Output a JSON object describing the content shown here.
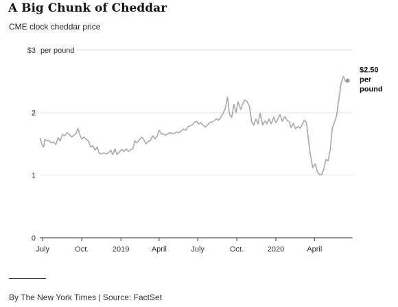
{
  "header": {
    "title": "A Big Chunk of Cheddar",
    "subtitle": "CME clock cheddar price"
  },
  "footer": {
    "credit": "By The New York Times | Source: FactSet"
  },
  "chart_data": {
    "type": "line",
    "title": "A Big Chunk of Cheddar",
    "subtitle": "CME clock cheddar price",
    "ylim": [
      0,
      3
    ],
    "xlim": [
      "2018-06-24",
      "2020-06-30"
    ],
    "y_ticks": [
      {
        "value": 3,
        "label": "$3"
      },
      {
        "value": 2,
        "label": "2"
      },
      {
        "value": 1,
        "label": "1"
      },
      {
        "value": 0,
        "label": "0"
      }
    ],
    "y_unit_label": "per pound",
    "x_ticks": [
      {
        "date": "2018-07-01",
        "label": "July"
      },
      {
        "date": "2018-10-01",
        "label": "Oct."
      },
      {
        "date": "2019-01-01",
        "label": "2019"
      },
      {
        "date": "2019-04-01",
        "label": "April"
      },
      {
        "date": "2019-07-01",
        "label": "July"
      },
      {
        "date": "2019-10-01",
        "label": "Oct."
      },
      {
        "date": "2020-01-01",
        "label": "2020"
      },
      {
        "date": "2020-04-01",
        "label": "April"
      }
    ],
    "grid": true,
    "end_annotation": {
      "value": 2.5,
      "lines": [
        "$2.50",
        "per",
        "pound"
      ]
    },
    "colors": {
      "line": "#a8a8a8",
      "grid": "#e2e2e2",
      "axis": "#333333",
      "end_dot": "#999999"
    },
    "series": [
      {
        "points": [
          [
            "2018-06-25",
            1.6
          ],
          [
            "2018-06-29",
            1.49
          ],
          [
            "2018-07-03",
            1.45
          ],
          [
            "2018-07-06",
            1.57
          ],
          [
            "2018-07-11",
            1.55
          ],
          [
            "2018-07-16",
            1.55
          ],
          [
            "2018-07-21",
            1.52
          ],
          [
            "2018-07-26",
            1.53
          ],
          [
            "2018-08-01",
            1.49
          ],
          [
            "2018-08-06",
            1.6
          ],
          [
            "2018-08-11",
            1.55
          ],
          [
            "2018-08-17",
            1.65
          ],
          [
            "2018-08-22",
            1.63
          ],
          [
            "2018-08-27",
            1.68
          ],
          [
            "2018-09-02",
            1.65
          ],
          [
            "2018-09-07",
            1.61
          ],
          [
            "2018-09-12",
            1.64
          ],
          [
            "2018-09-17",
            1.66
          ],
          [
            "2018-09-22",
            1.75
          ],
          [
            "2018-09-26",
            1.65
          ],
          [
            "2018-10-01",
            1.58
          ],
          [
            "2018-10-06",
            1.61
          ],
          [
            "2018-10-12",
            1.57
          ],
          [
            "2018-10-17",
            1.54
          ],
          [
            "2018-10-22",
            1.45
          ],
          [
            "2018-10-27",
            1.47
          ],
          [
            "2018-11-01",
            1.4
          ],
          [
            "2018-11-06",
            1.45
          ],
          [
            "2018-11-11",
            1.35
          ],
          [
            "2018-11-17",
            1.34
          ],
          [
            "2018-11-22",
            1.36
          ],
          [
            "2018-11-27",
            1.34
          ],
          [
            "2018-12-03",
            1.36
          ],
          [
            "2018-12-08",
            1.4
          ],
          [
            "2018-12-13",
            1.33
          ],
          [
            "2018-12-18",
            1.42
          ],
          [
            "2018-12-23",
            1.33
          ],
          [
            "2018-12-28",
            1.37
          ],
          [
            "2019-01-03",
            1.41
          ],
          [
            "2019-01-08",
            1.38
          ],
          [
            "2019-01-14",
            1.42
          ],
          [
            "2019-01-19",
            1.38
          ],
          [
            "2019-01-24",
            1.41
          ],
          [
            "2019-01-29",
            1.42
          ],
          [
            "2019-02-03",
            1.55
          ],
          [
            "2019-02-08",
            1.52
          ],
          [
            "2019-02-14",
            1.57
          ],
          [
            "2019-02-19",
            1.61
          ],
          [
            "2019-02-24",
            1.57
          ],
          [
            "2019-03-01",
            1.5
          ],
          [
            "2019-03-06",
            1.54
          ],
          [
            "2019-03-11",
            1.55
          ],
          [
            "2019-03-17",
            1.63
          ],
          [
            "2019-03-22",
            1.58
          ],
          [
            "2019-03-27",
            1.62
          ],
          [
            "2019-04-01",
            1.72
          ],
          [
            "2019-04-06",
            1.66
          ],
          [
            "2019-04-11",
            1.66
          ],
          [
            "2019-04-16",
            1.64
          ],
          [
            "2019-04-21",
            1.66
          ],
          [
            "2019-04-27",
            1.68
          ],
          [
            "2019-05-02",
            1.66
          ],
          [
            "2019-05-07",
            1.67
          ],
          [
            "2019-05-12",
            1.69
          ],
          [
            "2019-05-18",
            1.68
          ],
          [
            "2019-05-23",
            1.71
          ],
          [
            "2019-05-29",
            1.74
          ],
          [
            "2019-06-03",
            1.72
          ],
          [
            "2019-06-08",
            1.77
          ],
          [
            "2019-06-13",
            1.79
          ],
          [
            "2019-06-18",
            1.8
          ],
          [
            "2019-06-23",
            1.84
          ],
          [
            "2019-06-28",
            1.86
          ],
          [
            "2019-07-03",
            1.82
          ],
          [
            "2019-07-08",
            1.84
          ],
          [
            "2019-07-13",
            1.8
          ],
          [
            "2019-07-19",
            1.77
          ],
          [
            "2019-07-24",
            1.8
          ],
          [
            "2019-07-29",
            1.84
          ],
          [
            "2019-08-03",
            1.85
          ],
          [
            "2019-08-09",
            1.87
          ],
          [
            "2019-08-14",
            1.9
          ],
          [
            "2019-08-19",
            1.88
          ],
          [
            "2019-08-24",
            1.92
          ],
          [
            "2019-08-29",
            1.98
          ],
          [
            "2019-09-04",
            2.07
          ],
          [
            "2019-09-09",
            2.25
          ],
          [
            "2019-09-14",
            1.97
          ],
          [
            "2019-09-19",
            1.92
          ],
          [
            "2019-09-24",
            2.13
          ],
          [
            "2019-09-29",
            2.0
          ],
          [
            "2019-10-04",
            2.17
          ],
          [
            "2019-10-10",
            2.05
          ],
          [
            "2019-10-15",
            2.14
          ],
          [
            "2019-10-20",
            2.2
          ],
          [
            "2019-10-25",
            2.18
          ],
          [
            "2019-10-31",
            2.1
          ],
          [
            "2019-11-05",
            1.85
          ],
          [
            "2019-11-10",
            1.8
          ],
          [
            "2019-11-15",
            1.9
          ],
          [
            "2019-11-20",
            1.82
          ],
          [
            "2019-11-25",
            1.99
          ],
          [
            "2019-12-01",
            1.8
          ],
          [
            "2019-12-06",
            1.87
          ],
          [
            "2019-12-11",
            1.82
          ],
          [
            "2019-12-16",
            1.9
          ],
          [
            "2019-12-21",
            1.82
          ],
          [
            "2019-12-27",
            1.93
          ],
          [
            "2020-01-01",
            1.84
          ],
          [
            "2020-01-06",
            1.9
          ],
          [
            "2020-01-11",
            1.97
          ],
          [
            "2020-01-16",
            1.86
          ],
          [
            "2020-01-22",
            1.94
          ],
          [
            "2020-01-27",
            1.88
          ],
          [
            "2020-02-01",
            1.86
          ],
          [
            "2020-02-06",
            1.76
          ],
          [
            "2020-02-11",
            1.83
          ],
          [
            "2020-02-16",
            1.74
          ],
          [
            "2020-02-22",
            1.78
          ],
          [
            "2020-02-27",
            1.75
          ],
          [
            "2020-03-03",
            1.81
          ],
          [
            "2020-03-08",
            1.88
          ],
          [
            "2020-03-13",
            1.84
          ],
          [
            "2020-03-18",
            1.55
          ],
          [
            "2020-03-23",
            1.3
          ],
          [
            "2020-03-28",
            1.12
          ],
          [
            "2020-04-03",
            1.18
          ],
          [
            "2020-04-08",
            1.05
          ],
          [
            "2020-04-13",
            1.01
          ],
          [
            "2020-04-18",
            1.01
          ],
          [
            "2020-04-23",
            1.1
          ],
          [
            "2020-04-28",
            1.25
          ],
          [
            "2020-05-03",
            1.23
          ],
          [
            "2020-05-08",
            1.4
          ],
          [
            "2020-05-13",
            1.75
          ],
          [
            "2020-05-18",
            1.85
          ],
          [
            "2020-05-23",
            1.95
          ],
          [
            "2020-05-28",
            2.2
          ],
          [
            "2020-06-03",
            2.48
          ],
          [
            "2020-06-08",
            2.58
          ],
          [
            "2020-06-13",
            2.5
          ],
          [
            "2020-06-18",
            2.51
          ]
        ]
      }
    ]
  }
}
